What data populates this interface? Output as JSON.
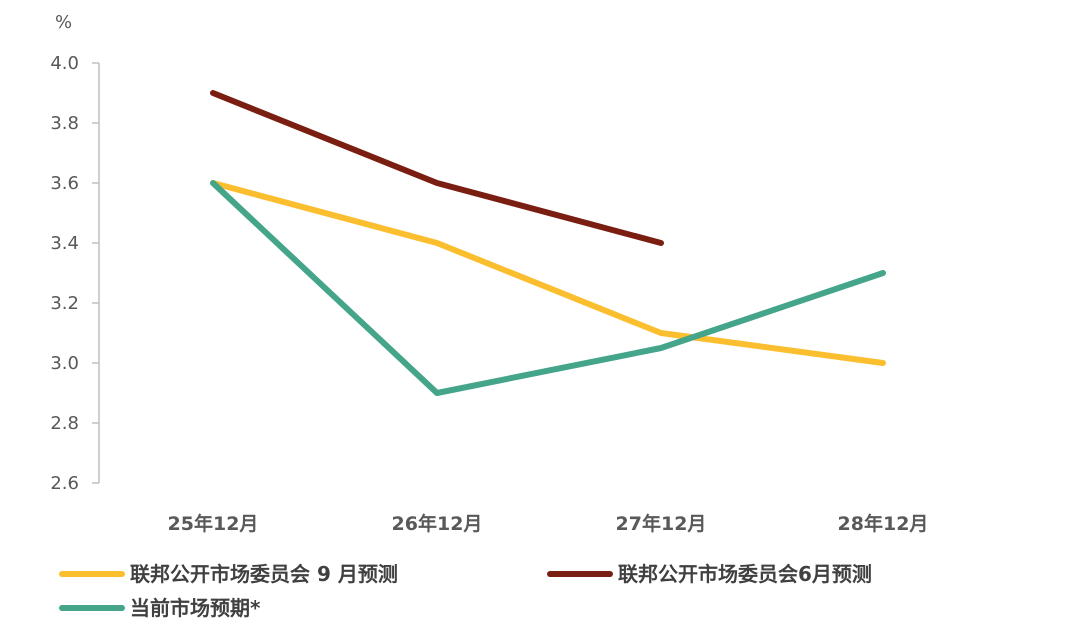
{
  "chart_data": {
    "type": "line",
    "title": "",
    "xlabel": "",
    "ylabel": "%",
    "categories": [
      "25年12月",
      "26年12月",
      "27年12月",
      "28年12月"
    ],
    "ylim": [
      2.6,
      4.0
    ],
    "yticks": [
      "2.6",
      "2.8",
      "3.0",
      "3.2",
      "3.4",
      "3.6",
      "3.8",
      "4.0"
    ],
    "grid": false,
    "legend_position": "bottom",
    "series": [
      {
        "name": "联邦公开市场委员会 9 月预测",
        "color": "#FBBE2E",
        "values": [
          3.6,
          3.4,
          3.1,
          3.0
        ]
      },
      {
        "name": "联邦公开市场委员会6月预测",
        "color": "#7B1E12",
        "values": [
          3.9,
          3.6,
          3.4,
          null
        ]
      },
      {
        "name": "当前市场预期*",
        "color": "#45A58A",
        "values": [
          3.6,
          2.9,
          3.05,
          3.3
        ]
      }
    ]
  }
}
